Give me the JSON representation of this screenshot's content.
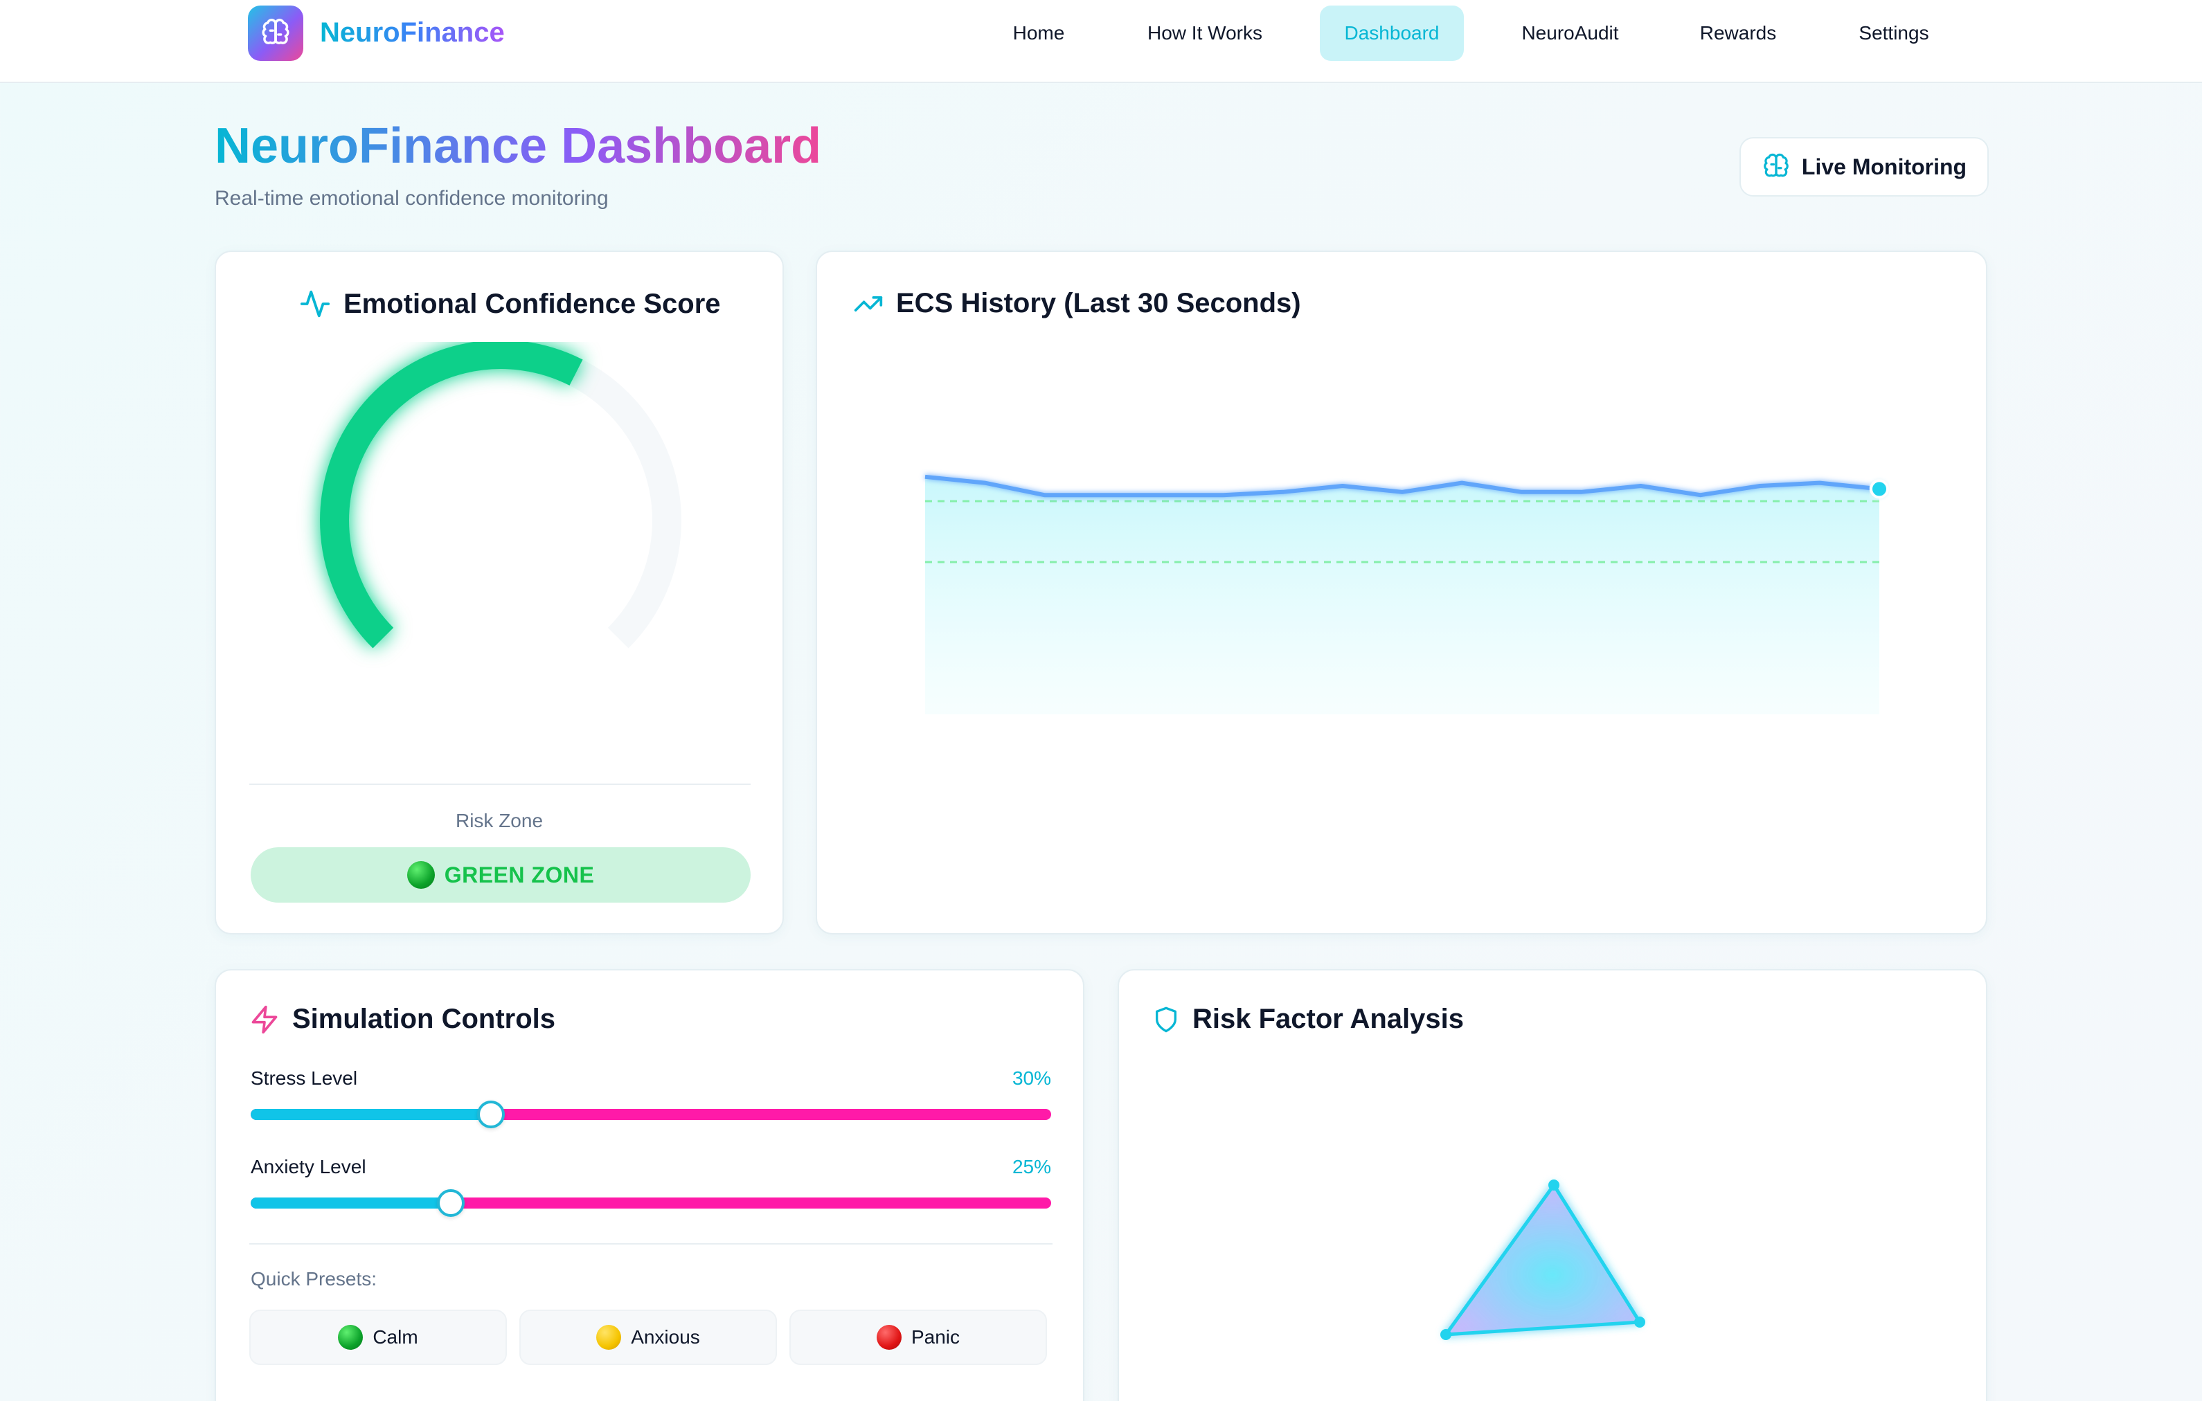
{
  "app": {
    "brand": "NeuroFinance",
    "icon": "brain-icon"
  },
  "nav": {
    "items": [
      {
        "label": "Home",
        "active": false
      },
      {
        "label": "How It Works",
        "active": false
      },
      {
        "label": "Dashboard",
        "active": true
      },
      {
        "label": "NeuroAudit",
        "active": false
      },
      {
        "label": "Rewards",
        "active": false
      },
      {
        "label": "Settings",
        "active": false
      }
    ]
  },
  "header": {
    "title": "NeuroFinance Dashboard",
    "subtitle": "Real-time emotional confidence monitoring",
    "live_button": "Live Monitoring"
  },
  "ecs_card": {
    "title": "Emotional Confidence Score",
    "icon": "activity-icon",
    "gauge_fraction": 0.6,
    "gauge_color": "#10d08a",
    "risk_zone_label": "Risk Zone",
    "zone_text": "GREEN ZONE",
    "zone_color": "#16c24c"
  },
  "history_card": {
    "title": "ECS History (Last 30 Seconds)",
    "icon": "trending-up-icon"
  },
  "chart_data": {
    "type": "area",
    "title": "ECS History (Last 30 Seconds)",
    "ylim": [
      0,
      100
    ],
    "grid": false,
    "x": [
      1,
      2,
      3,
      4,
      5,
      6,
      7,
      8,
      9,
      10,
      11,
      12,
      13,
      14,
      15,
      16,
      17
    ],
    "series": [
      {
        "values": [
          78,
          76,
          72,
          72,
          72,
          72,
          73,
          75,
          73,
          76,
          73,
          73,
          75,
          72,
          75,
          76,
          74
        ]
      }
    ],
    "thresholds": [
      {
        "value": 70,
        "color": "#86efac",
        "style": "dashed"
      },
      {
        "value": 50,
        "color": "#86efac",
        "style": "dashed"
      }
    ],
    "line_color": "#60a5fa",
    "fill_color": "#cffafe",
    "marker_color": "#22d3ee"
  },
  "simulation": {
    "title": "Simulation Controls",
    "icon": "zap-icon",
    "stress_label": "Stress Level",
    "stress_value": "30%",
    "stress_fraction": 0.3,
    "anxiety_label": "Anxiety Level",
    "anxiety_value": "25%",
    "anxiety_fraction": 0.25,
    "presets_label": "Quick Presets:",
    "presets": [
      {
        "label": "Calm",
        "icon": "green-circle-icon"
      },
      {
        "label": "Anxious",
        "icon": "yellow-circle-icon"
      },
      {
        "label": "Panic",
        "icon": "red-circle-icon"
      }
    ]
  },
  "risk_analysis": {
    "title": "Risk Factor Analysis",
    "icon": "shield-icon"
  }
}
